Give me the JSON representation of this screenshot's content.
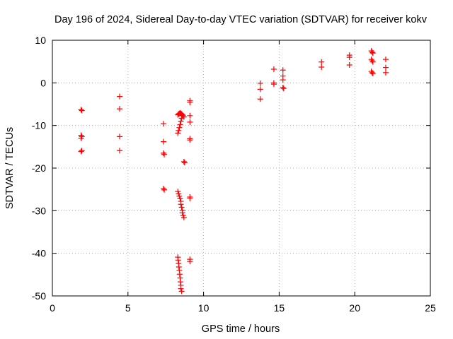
{
  "chart_data": {
    "type": "scatter",
    "title": "Day 196 of 2024, Sidereal Day-to-day VTEC variation (SDTVAR) for receiver kokv",
    "xlabel": "GPS time / hours",
    "ylabel": "SDTVAR / TECUs",
    "xlim": [
      0,
      25
    ],
    "ylim": [
      -50,
      10
    ],
    "xticks": [
      0,
      5,
      10,
      15,
      20,
      25
    ],
    "yticks": [
      -50,
      -40,
      -30,
      -20,
      -10,
      0,
      10
    ],
    "xtick_labels": [
      "0",
      "5",
      "10",
      "15",
      "20",
      "25"
    ],
    "ytick_labels": [
      "-50",
      "-40",
      "-30",
      "-20",
      "-10",
      "0",
      "10"
    ],
    "grid": true,
    "marker": "plus",
    "series": [
      {
        "name": "SDTVAR",
        "color": "#ff0000",
        "points": [
          [
            1.9,
            -6.3
          ],
          [
            1.95,
            -6.5
          ],
          [
            1.9,
            -12.3
          ],
          [
            1.95,
            -12.6
          ],
          [
            1.9,
            -13.0
          ],
          [
            1.95,
            -15.9
          ],
          [
            1.9,
            -16.1
          ],
          [
            4.45,
            -3.2
          ],
          [
            4.45,
            -6.1
          ],
          [
            4.45,
            -12.6
          ],
          [
            4.45,
            -15.9
          ],
          [
            7.35,
            -9.6
          ],
          [
            7.35,
            -13.8
          ],
          [
            7.35,
            -16.5
          ],
          [
            7.4,
            -16.8
          ],
          [
            7.35,
            -24.8
          ],
          [
            7.4,
            -25.1
          ],
          [
            8.3,
            -7.5
          ],
          [
            8.35,
            -7.3
          ],
          [
            8.4,
            -7.2
          ],
          [
            8.45,
            -7.1
          ],
          [
            8.5,
            -7.2
          ],
          [
            8.55,
            -7.3
          ],
          [
            8.6,
            -7.5
          ],
          [
            8.65,
            -7.7
          ],
          [
            8.7,
            -8.0
          ],
          [
            8.55,
            -8.3
          ],
          [
            8.5,
            -9.0
          ],
          [
            8.45,
            -9.8
          ],
          [
            8.4,
            -10.5
          ],
          [
            8.35,
            -11.2
          ],
          [
            8.3,
            -11.8
          ],
          [
            8.7,
            -18.5
          ],
          [
            8.75,
            -18.7
          ],
          [
            8.3,
            -25.5
          ],
          [
            8.35,
            -26.0
          ],
          [
            8.4,
            -26.6
          ],
          [
            8.45,
            -27.2
          ],
          [
            8.5,
            -27.8
          ],
          [
            8.5,
            -28.5
          ],
          [
            8.55,
            -29.2
          ],
          [
            8.6,
            -29.9
          ],
          [
            8.6,
            -30.5
          ],
          [
            8.65,
            -31.1
          ],
          [
            8.7,
            -31.6
          ],
          [
            8.3,
            -40.9
          ],
          [
            8.32,
            -41.6
          ],
          [
            8.35,
            -42.4
          ],
          [
            8.37,
            -43.2
          ],
          [
            8.4,
            -44.0
          ],
          [
            8.42,
            -44.9
          ],
          [
            8.45,
            -45.8
          ],
          [
            8.47,
            -46.7
          ],
          [
            8.5,
            -47.5
          ],
          [
            8.5,
            -48.3
          ],
          [
            8.55,
            -48.9
          ],
          [
            9.1,
            -4.2
          ],
          [
            9.1,
            -4.6
          ],
          [
            9.1,
            -7.7
          ],
          [
            9.1,
            -9.2
          ],
          [
            9.1,
            -13.1
          ],
          [
            9.1,
            -13.4
          ],
          [
            9.1,
            -26.8
          ],
          [
            9.1,
            -27.1
          ],
          [
            9.1,
            -41.4
          ],
          [
            9.1,
            -41.9
          ],
          [
            13.75,
            -0.1
          ],
          [
            13.75,
            -1.5
          ],
          [
            13.75,
            -3.8
          ],
          [
            14.65,
            3.2
          ],
          [
            14.65,
            0.0
          ],
          [
            14.65,
            -0.3
          ],
          [
            15.25,
            3.0
          ],
          [
            15.25,
            1.6
          ],
          [
            15.25,
            0.7
          ],
          [
            15.25,
            -1.1
          ],
          [
            15.3,
            -1.3
          ],
          [
            17.8,
            4.9
          ],
          [
            17.8,
            3.7
          ],
          [
            19.65,
            6.5
          ],
          [
            19.65,
            6.0
          ],
          [
            19.65,
            4.2
          ],
          [
            21.1,
            7.5
          ],
          [
            21.15,
            7.2
          ],
          [
            21.2,
            7.0
          ],
          [
            21.1,
            5.5
          ],
          [
            21.15,
            5.2
          ],
          [
            21.2,
            4.9
          ],
          [
            21.1,
            2.7
          ],
          [
            21.15,
            2.4
          ],
          [
            21.2,
            2.2
          ],
          [
            22.05,
            5.5
          ],
          [
            22.05,
            3.6
          ],
          [
            22.05,
            2.4
          ]
        ]
      }
    ]
  }
}
